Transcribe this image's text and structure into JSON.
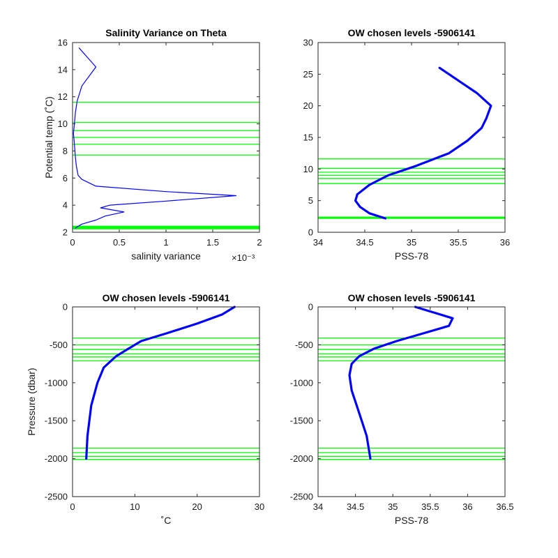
{
  "figure": {
    "background": "#ffffff",
    "profile_color": "#0000ff",
    "level_color": "#00ff00"
  },
  "chart_data": [
    {
      "type": "line",
      "title": "Salinity Variance on Theta",
      "xlabel": "salinity variance",
      "ylabel": "Potential temp (˚C)",
      "x_exponent_label": "×10⁻³",
      "xlim": [
        0,
        2
      ],
      "ylim": [
        2,
        16
      ],
      "xticks": [
        0,
        0.5,
        1,
        1.5,
        2
      ],
      "xtick_labels": [
        "0",
        "0.5",
        "1",
        "1.5",
        "2"
      ],
      "yticks": [
        2,
        4,
        6,
        8,
        10,
        12,
        14,
        16
      ],
      "ytick_labels": [
        "2",
        "4",
        "6",
        "8",
        "10",
        "12",
        "14",
        "16"
      ],
      "grid": false,
      "series": [
        {
          "values_x_e3": [
            0.07,
            0.25,
            0.1,
            0.05,
            0.03,
            0.02,
            0.01,
            0.02,
            0.03,
            0.04,
            0.06,
            0.1,
            0.25,
            1.0,
            1.75,
            1.0,
            0.4,
            0.3,
            0.55,
            0.35,
            0.25,
            0.1,
            0.05,
            0.03
          ],
          "y": [
            15.6,
            14.2,
            12.8,
            11.7,
            10.8,
            10.0,
            9.3,
            8.5,
            7.6,
            6.9,
            6.2,
            5.9,
            5.4,
            5.0,
            4.7,
            4.3,
            4.0,
            3.8,
            3.5,
            3.2,
            2.9,
            2.6,
            2.4,
            2.3
          ]
        }
      ],
      "level_lines": {
        "axis": "y",
        "values": [
          11.6,
          10.1,
          9.5,
          9.0,
          8.5,
          7.7,
          2.25,
          2.3,
          2.35,
          2.4,
          2.45
        ]
      }
    },
    {
      "type": "line",
      "title": "OW chosen levels -5906141",
      "xlabel": "PSS-78",
      "ylabel": "",
      "xlim": [
        34,
        36
      ],
      "ylim": [
        0,
        30
      ],
      "xticks": [
        34,
        34.5,
        35,
        35.5,
        36
      ],
      "xtick_labels": [
        "34",
        "34.5",
        "35",
        "35.5",
        "36"
      ],
      "yticks": [
        0,
        5,
        10,
        15,
        20,
        25,
        30
      ],
      "ytick_labels": [
        "0",
        "5",
        "10",
        "15",
        "20",
        "25",
        "30"
      ],
      "grid": false,
      "series": [
        {
          "x": [
            34.72,
            34.55,
            34.45,
            34.4,
            34.42,
            34.55,
            34.75,
            35.05,
            35.4,
            35.6,
            35.75,
            35.8,
            35.85,
            35.7,
            35.55,
            35.4,
            35.3
          ],
          "y": [
            2.2,
            3.0,
            4.0,
            5.0,
            6.0,
            7.5,
            9.0,
            10.5,
            12.5,
            14.5,
            16.5,
            18.0,
            20.0,
            22.0,
            23.5,
            25.0,
            26.0
          ]
        }
      ],
      "level_lines": {
        "axis": "y",
        "values": [
          11.6,
          10.1,
          9.5,
          9.0,
          8.5,
          7.7,
          2.2,
          2.3,
          2.4
        ]
      }
    },
    {
      "type": "line",
      "title": "OW chosen levels -5906141",
      "xlabel": "˚C",
      "ylabel": "Pressure (dbar)",
      "xlim": [
        0,
        30
      ],
      "ylim": [
        -2500,
        0
      ],
      "xticks": [
        0,
        10,
        20,
        30
      ],
      "xtick_labels": [
        "0",
        "10",
        "20",
        "30"
      ],
      "yticks": [
        -2500,
        -2000,
        -1500,
        -1000,
        -500,
        0
      ],
      "ytick_labels": [
        "-2500",
        "-2000",
        "-1500",
        "-1000",
        "-500",
        "0"
      ],
      "grid": false,
      "series": [
        {
          "x": [
            2.2,
            2.4,
            3.0,
            4.0,
            5.0,
            7.0,
            9.0,
            11.0,
            15.0,
            20.0,
            24.0,
            26.0
          ],
          "y": [
            -2000,
            -1700,
            -1300,
            -1000,
            -800,
            -650,
            -550,
            -450,
            -350,
            -220,
            -100,
            0
          ]
        }
      ],
      "level_lines": {
        "axis": "y",
        "values": [
          -410,
          -500,
          -560,
          -620,
          -660,
          -710,
          -1860,
          -1920,
          -1970,
          -2010
        ]
      }
    },
    {
      "type": "line",
      "title": "OW chosen levels -5906141",
      "xlabel": "PSS-78",
      "ylabel": "",
      "xlim": [
        34,
        36.5
      ],
      "ylim": [
        -2500,
        0
      ],
      "xticks": [
        34,
        34.5,
        35,
        35.5,
        36,
        36.5
      ],
      "xtick_labels": [
        "34",
        "34.5",
        "35",
        "35.5",
        "36",
        "36.5"
      ],
      "yticks": [
        -2500,
        -2000,
        -1500,
        -1000,
        -500,
        0
      ],
      "ytick_labels": [
        "-2500",
        "-2000",
        "-1500",
        "-1000",
        "-500",
        "0"
      ],
      "grid": false,
      "series": [
        {
          "x": [
            34.7,
            34.65,
            34.55,
            34.45,
            34.42,
            34.45,
            34.55,
            34.75,
            35.05,
            35.4,
            35.75,
            35.8,
            35.5,
            35.3
          ],
          "y": [
            -2000,
            -1700,
            -1400,
            -1100,
            -900,
            -750,
            -650,
            -550,
            -450,
            -350,
            -250,
            -150,
            -60,
            0
          ]
        }
      ],
      "level_lines": {
        "axis": "y",
        "values": [
          -410,
          -500,
          -560,
          -620,
          -660,
          -710,
          -1860,
          -1920,
          -1970,
          -2010
        ]
      }
    }
  ]
}
